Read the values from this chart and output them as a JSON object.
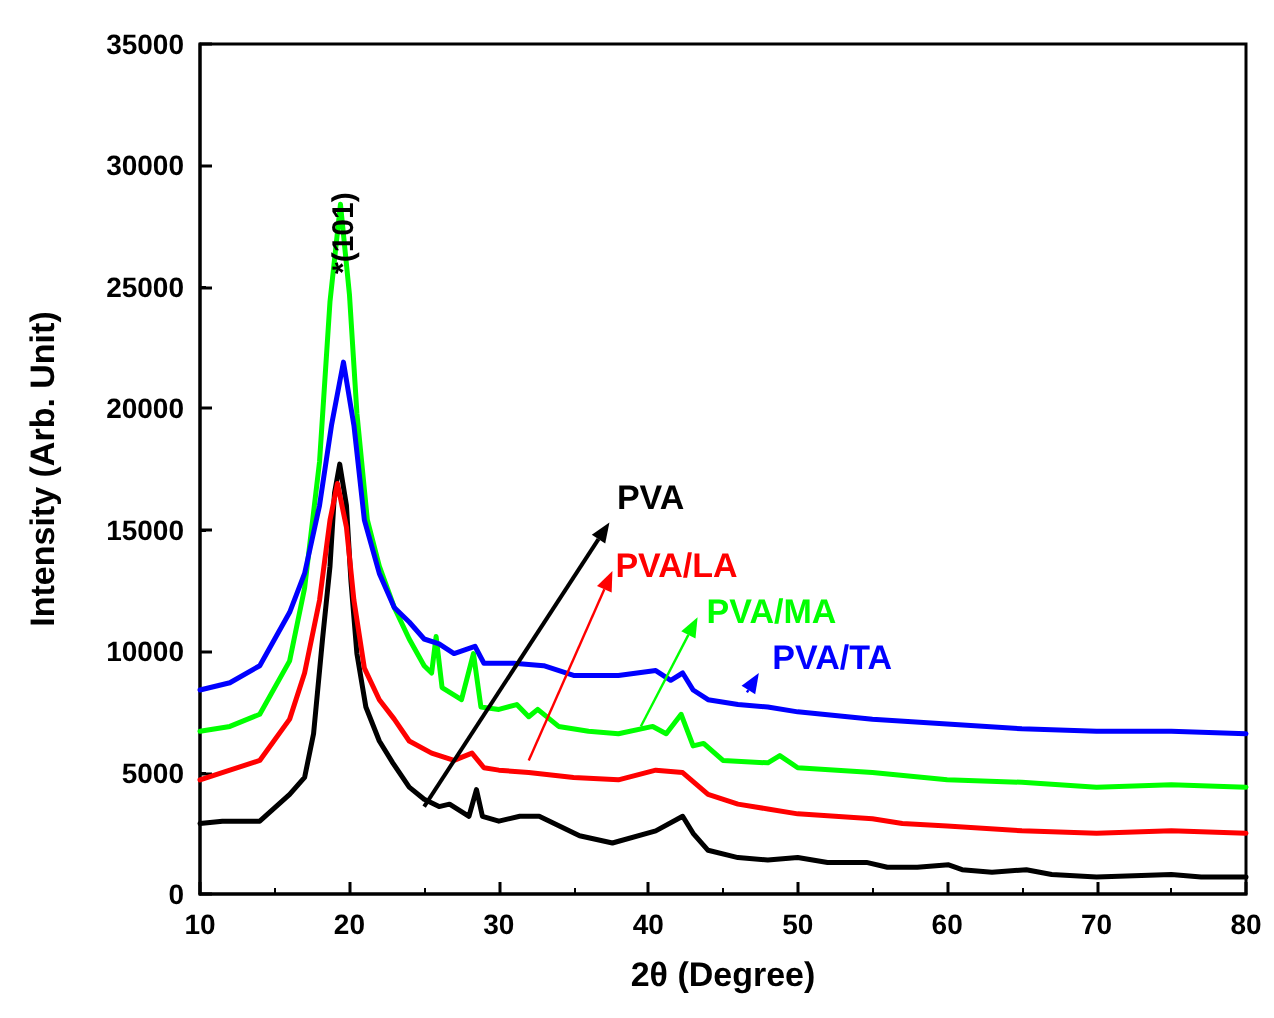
{
  "chart_data": {
    "type": "line",
    "xlabel": "2θ (Degree)",
    "ylabel": "Intensity (Arb. Unit)",
    "xlim": [
      10,
      80
    ],
    "xticks": [
      10,
      20,
      30,
      40,
      50,
      60,
      70,
      80
    ],
    "ylim": [
      0,
      35000
    ],
    "yticks": [
      0,
      5000,
      10000,
      15000,
      20000,
      25000,
      30000,
      35000
    ],
    "grid": false,
    "legend": "right",
    "marker": "none",
    "line_style": "solid",
    "annotations": [
      {
        "text": "*(101)",
        "x": 19.4,
        "y": 28400
      }
    ],
    "series": [
      {
        "name": "PVA",
        "color": "#000000",
        "x": [
          10,
          11.5,
          14,
          16,
          17,
          17.6,
          18.2,
          18.7,
          19,
          19.35,
          19.8,
          20.1,
          20.5,
          21.1,
          22,
          22.9,
          24,
          25,
          26,
          26.7,
          28,
          28.5,
          28.9,
          30,
          31.4,
          32.7,
          35.4,
          37.6,
          40.5,
          42.3,
          43,
          44,
          46,
          48,
          50,
          52,
          54.6,
          56,
          58,
          60.1,
          61,
          63,
          65.3,
          67,
          70,
          75,
          77,
          80
        ],
        "values": [
          2900,
          3000,
          3000,
          4100,
          4800,
          6600,
          10500,
          13500,
          16500,
          17700,
          16000,
          12900,
          9900,
          7700,
          6300,
          5400,
          4400,
          3900,
          3600,
          3700,
          3200,
          4300,
          3200,
          3000,
          3200,
          3200,
          2400,
          2100,
          2600,
          3200,
          2500,
          1800,
          1500,
          1400,
          1500,
          1300,
          1300,
          1100,
          1100,
          1200,
          1000,
          900,
          1000,
          800,
          700,
          800,
          700,
          700
        ]
      },
      {
        "name": "PVA/LA",
        "color": "#ff0000",
        "x": [
          10,
          12,
          14,
          16,
          17,
          18,
          18.7,
          19.2,
          19.8,
          20.3,
          21,
          22,
          23,
          24,
          25.5,
          27,
          28.2,
          29,
          30,
          32,
          35,
          38,
          40.5,
          42.3,
          44,
          46,
          48,
          50,
          55,
          57,
          60,
          65,
          70,
          75,
          80
        ],
        "values": [
          4700,
          5100,
          5500,
          7200,
          9100,
          12100,
          15400,
          16900,
          15100,
          12100,
          9300,
          8000,
          7200,
          6300,
          5800,
          5500,
          5800,
          5200,
          5100,
          5000,
          4800,
          4700,
          5100,
          5000,
          4100,
          3700,
          3500,
          3300,
          3100,
          2900,
          2800,
          2600,
          2500,
          2600,
          2500
        ]
      },
      {
        "name": "PVA/MA",
        "color": "#00ff00",
        "x": [
          10,
          12,
          14,
          16,
          17,
          18,
          18.7,
          19.4,
          20,
          20.5,
          21.2,
          22,
          23,
          24,
          25,
          25.5,
          25.8,
          26.2,
          27.5,
          28.3,
          28.8,
          30,
          31.2,
          32,
          32.6,
          34,
          36,
          38,
          40.3,
          41.2,
          42.2,
          43,
          43.7,
          45,
          48,
          48.8,
          50,
          55,
          60,
          65,
          70,
          75,
          80
        ],
        "values": [
          6700,
          6900,
          7400,
          9600,
          12600,
          17800,
          24400,
          28400,
          24700,
          19800,
          15400,
          13500,
          11800,
          10500,
          9400,
          9100,
          10600,
          8500,
          8000,
          9900,
          7700,
          7600,
          7800,
          7300,
          7600,
          6900,
          6700,
          6600,
          6900,
          6600,
          7400,
          6100,
          6200,
          5500,
          5400,
          5700,
          5200,
          5000,
          4700,
          4600,
          4400,
          4500,
          4400
        ]
      },
      {
        "name": "PVA/TA",
        "color": "#0000ff",
        "x": [
          10,
          12,
          14,
          16,
          17,
          18,
          18.8,
          19.6,
          20.3,
          21,
          22,
          23,
          24,
          25,
          26,
          27,
          28.4,
          29,
          31,
          33,
          35,
          38,
          40.5,
          41.5,
          42.3,
          43,
          44,
          46,
          48,
          50,
          55,
          60,
          65,
          70,
          75,
          80
        ],
        "values": [
          8400,
          8700,
          9400,
          11600,
          13200,
          16000,
          19300,
          21900,
          19300,
          15400,
          13200,
          11800,
          11200,
          10500,
          10300,
          9900,
          10200,
          9500,
          9500,
          9400,
          9000,
          9000,
          9200,
          8800,
          9100,
          8400,
          8000,
          7800,
          7700,
          7500,
          7200,
          7000,
          6800,
          6700,
          6700,
          6600
        ]
      }
    ]
  }
}
